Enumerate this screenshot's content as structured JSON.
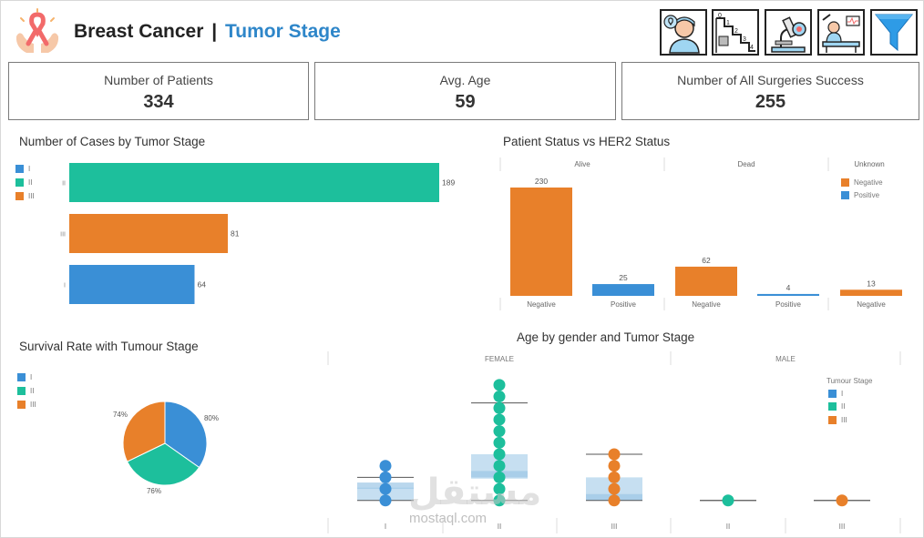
{
  "header": {
    "title_part1": "Breast Cancer",
    "separator": "|",
    "title_part2": "Tumor Stage"
  },
  "kpis": [
    {
      "label": "Number of Patients",
      "value": "334"
    },
    {
      "label": "Avg. Age",
      "value": "59"
    },
    {
      "label": "Number of All Surgeries  Success",
      "value": "255"
    }
  ],
  "watermark": {
    "arabic": "مستقل",
    "latin": "mostaql.com"
  },
  "colors": {
    "I": "#3a8fd6",
    "II": "#1dbf9c",
    "III": "#e8802a",
    "box": "#bcd9ee",
    "accent": "#2e86c9"
  },
  "chart_data": [
    {
      "id": "cases",
      "type": "bar",
      "orientation": "horizontal",
      "title": "Number of Cases by Tumor Stage",
      "legend": [
        "I",
        "II",
        "III"
      ],
      "categories": [
        "II",
        "III",
        "I"
      ],
      "values": [
        189,
        81,
        64
      ],
      "xlim": [
        0,
        189
      ]
    },
    {
      "id": "her2",
      "type": "bar",
      "title": "Patient Status vs HER2 Status",
      "panels": [
        "Alive",
        "Dead",
        "Unknown"
      ],
      "legend": [
        "Negative",
        "Positive"
      ],
      "bars": [
        {
          "panel": "Alive",
          "label": "Negative",
          "value": 230
        },
        {
          "panel": "Alive",
          "label": "Positive",
          "value": 25
        },
        {
          "panel": "Dead",
          "label": "Negative",
          "value": 62
        },
        {
          "panel": "Dead",
          "label": "Positive",
          "value": 4
        },
        {
          "panel": "Unknown",
          "label": "Negative",
          "value": 13
        }
      ],
      "ylim": [
        0,
        230
      ]
    },
    {
      "id": "survival",
      "type": "pie",
      "title": "Survival Rate with Tumour Stage",
      "legend": [
        "I",
        "II",
        "III"
      ],
      "slices": [
        {
          "label": "I",
          "value": 80,
          "text": "80%"
        },
        {
          "label": "II",
          "value": 76,
          "text": "76%"
        },
        {
          "label": "III",
          "value": 74,
          "text": "74%"
        }
      ]
    },
    {
      "id": "age",
      "type": "scatter",
      "subtype": "box-and-dot",
      "title": "Age by gender and Tumor Stage",
      "panels": [
        "FEMALE",
        "MALE"
      ],
      "legend_title": "Tumour Stage",
      "legend": [
        "I",
        "II",
        "III"
      ],
      "ylim": [
        0,
        10
      ],
      "groups": [
        {
          "panel": "FEMALE",
          "stage": "I",
          "points": [
            0.3,
            1.2,
            2.1,
            3.0
          ],
          "q1": 0.3,
          "median": 1.2,
          "q3": 1.3,
          "whisker_low": 0.3,
          "whisker_high": 2.1
        },
        {
          "panel": "FEMALE",
          "stage": "II",
          "points": [
            0.3,
            1.2,
            2.1,
            3.0,
            3.9,
            4.8,
            5.7,
            6.6,
            7.5,
            8.4,
            9.3
          ],
          "q1": 2.0,
          "median": 2.1,
          "q3": 3.9,
          "whisker_low": 0.3,
          "whisker_high": 7.9
        },
        {
          "panel": "FEMALE",
          "stage": "III",
          "points": [
            0.3,
            1.2,
            2.1,
            3.0,
            3.9
          ],
          "q1": 0.3,
          "median": 0.3,
          "q3": 2.1,
          "whisker_low": 0.3,
          "whisker_high": 3.9
        },
        {
          "panel": "MALE",
          "stage": "II",
          "points": [
            0.3
          ],
          "q1": 0.3,
          "median": 0.3,
          "q3": 0.3,
          "whisker_low": 0.3,
          "whisker_high": 0.3
        },
        {
          "panel": "MALE",
          "stage": "III",
          "points": [
            0.3
          ],
          "q1": 0.3,
          "median": 0.3,
          "q3": 0.3,
          "whisker_low": 0.3,
          "whisker_high": 0.3
        }
      ]
    }
  ]
}
